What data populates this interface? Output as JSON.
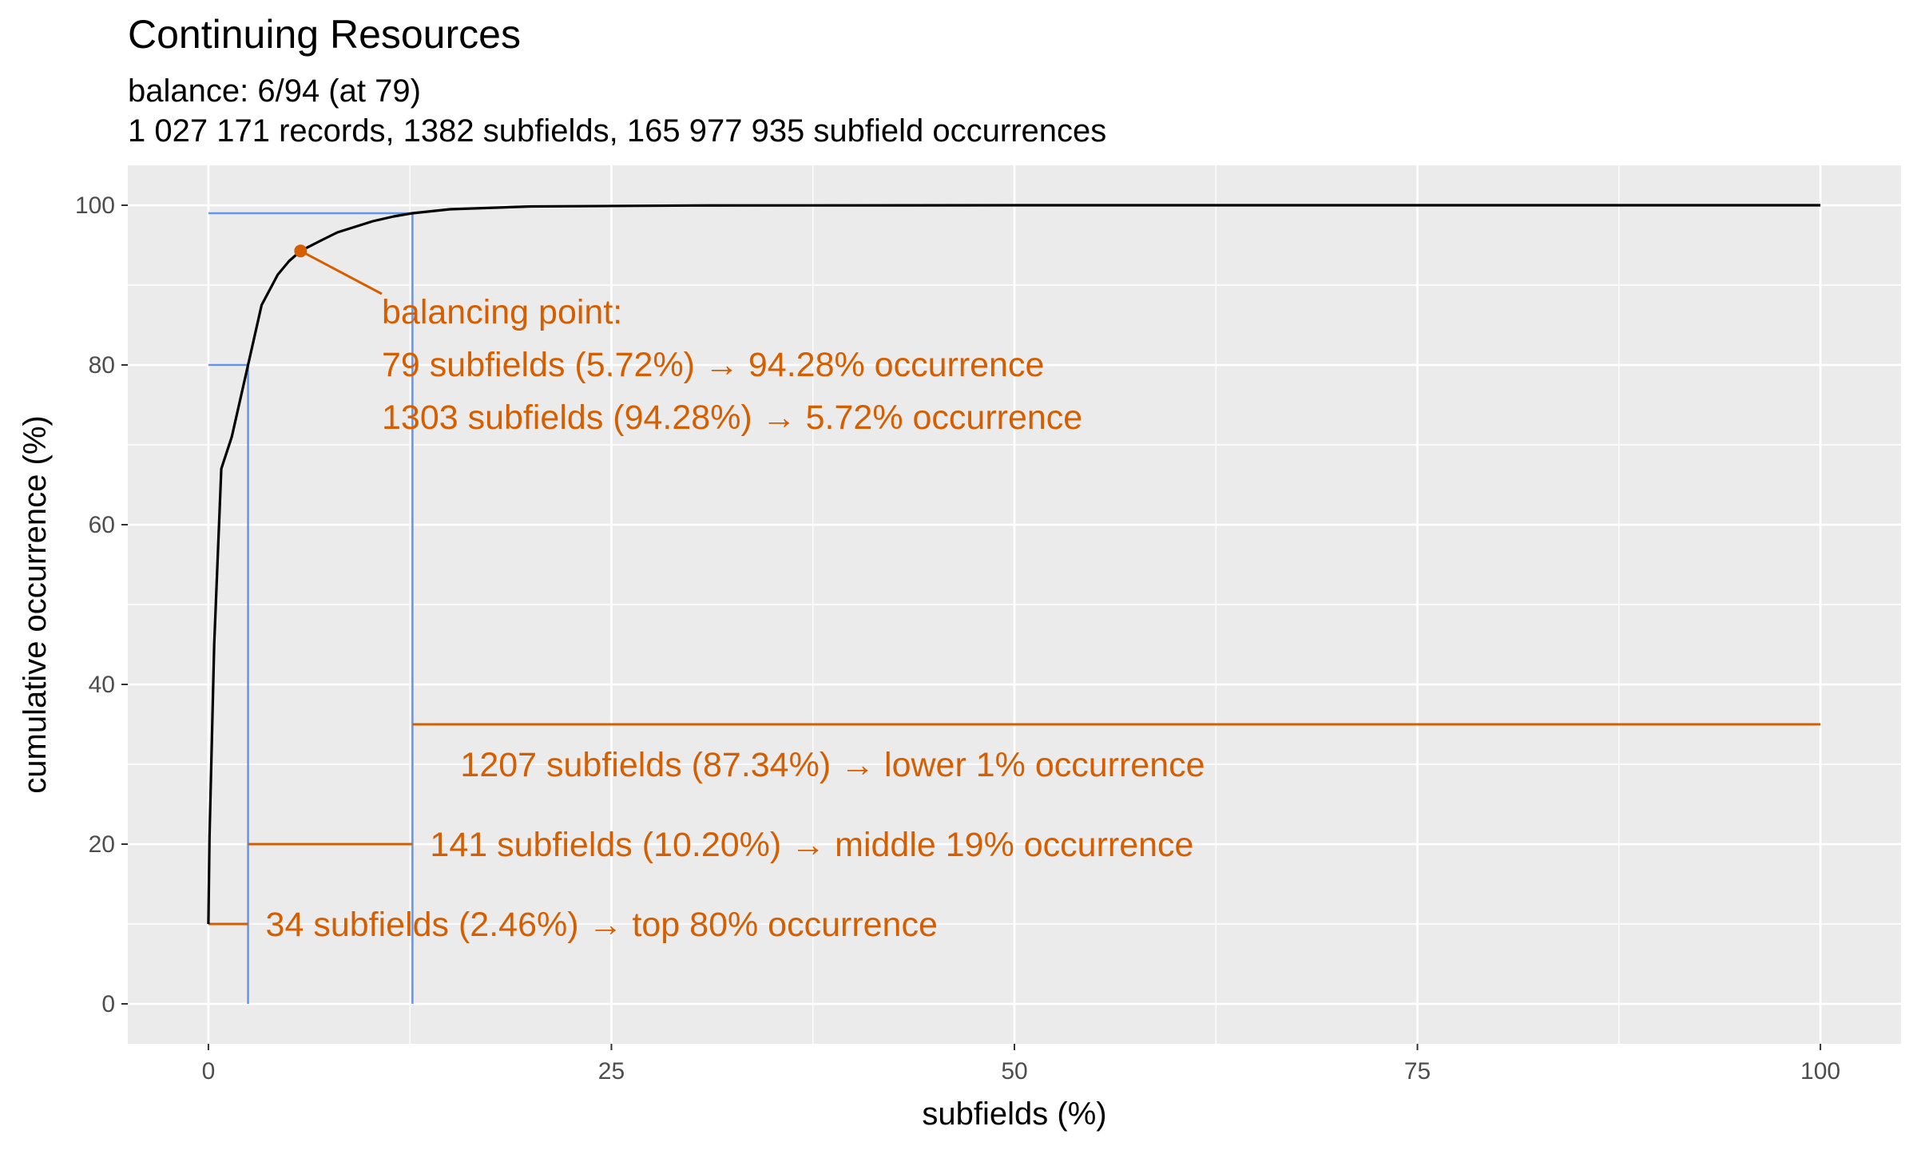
{
  "chart_data": {
    "type": "line",
    "title": "Continuing Resources",
    "subtitle_lines": [
      "balance: 6/94 (at 79)",
      "1 027 171 records, 1382 subfields, 165 977 935 subfield occurrences"
    ],
    "xlabel": "subfields (%)",
    "ylabel": "cumulative occurrence (%)",
    "xlim": [
      -5,
      105
    ],
    "ylim": [
      -5,
      105
    ],
    "x_ticks": [
      0,
      25,
      50,
      75,
      100
    ],
    "y_ticks": [
      0,
      20,
      40,
      60,
      80,
      100
    ],
    "grid": true,
    "legend": "none",
    "colors": {
      "curve": "#000000",
      "guide": "#6495ed",
      "annotation": "#d55e00",
      "panel": "#ebebeb",
      "grid": "#ffffff"
    },
    "series": [
      {
        "x": [
          0,
          0.07,
          0.36,
          0.8,
          1.45,
          2.46,
          3.3,
          4.3,
          5.0,
          5.72,
          7.0,
          8.0,
          10.2,
          11.5,
          12.66,
          15.0,
          20.0,
          30.0,
          50.0,
          75.0,
          100.0
        ],
        "y": [
          10,
          21,
          45,
          67,
          71,
          80,
          87.5,
          91.3,
          93.0,
          94.28,
          95.6,
          96.6,
          98.0,
          98.6,
          99.0,
          99.5,
          99.85,
          99.97,
          100,
          100,
          100
        ]
      }
    ],
    "guides": {
      "top80": {
        "x": 2.46,
        "y": 80
      },
      "top99": {
        "x": 12.66,
        "y": 99
      }
    },
    "balance_point": {
      "x": 5.72,
      "y": 94.28
    },
    "balance_annotation": {
      "lines": [
        "balancing point:",
        "79 subfields (5.72%) → 94.28% occurrence",
        "1303 subfields (94.28%) → 5.72% occurrence"
      ]
    },
    "segments": [
      {
        "x_start": 0,
        "x_end": 2.46,
        "y": 10,
        "label": "34 subfields (2.46%) → top 80% occurrence"
      },
      {
        "x_start": 2.46,
        "x_end": 12.66,
        "y": 20,
        "label": "141 subfields (10.20%) → middle 19% occurrence"
      },
      {
        "x_start": 12.66,
        "x_end": 100,
        "y": 35,
        "label": "1207 subfields (87.34%) → lower 1% occurrence"
      }
    ]
  }
}
